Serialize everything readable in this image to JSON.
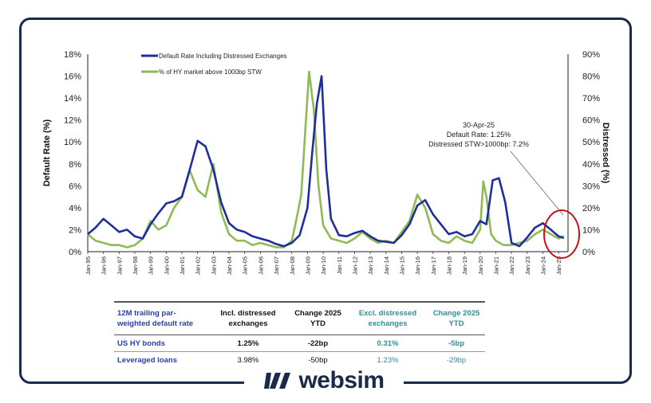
{
  "chart_data": {
    "type": "line",
    "title": "",
    "ylabel_left": "Default Rate (%)",
    "ylabel_right": "Distressed (%)",
    "ylim_left": [
      0,
      18
    ],
    "ylim_right": [
      0,
      90
    ],
    "yticks_left": [
      "0%",
      "2%",
      "4%",
      "6%",
      "8%",
      "10%",
      "12%",
      "14%",
      "16%",
      "18%"
    ],
    "yticks_right": [
      "0%",
      "10%",
      "20%",
      "30%",
      "40%",
      "50%",
      "60%",
      "70%",
      "80%",
      "90%"
    ],
    "xticks": [
      "Jan-95",
      "Jan-96",
      "Jan-97",
      "Jan-98",
      "Jan-99",
      "Jan-00",
      "Jan-01",
      "Jan-02",
      "Jan-03",
      "Jan-04",
      "Jan-05",
      "Jan-06",
      "Jan-07",
      "Jan-08",
      "Jan-09",
      "Jan-10",
      "Jan-11",
      "Jan-12",
      "Jan-13",
      "Jan-14",
      "Jan-15",
      "Jan-16",
      "Jan-17",
      "Jan-18",
      "Jan-19",
      "Jan-20",
      "Jan-21",
      "Jan-22",
      "Jan-23",
      "Jan-24",
      "Jan-25"
    ],
    "series": [
      {
        "name": "Default Rate Including Distressed Exchanges",
        "axis": "left",
        "color": "#1f2e9c",
        "x": [
          1995.0,
          1995.5,
          1996.0,
          1996.5,
          1997.0,
          1997.5,
          1998.0,
          1998.5,
          1999.0,
          1999.5,
          2000.0,
          2000.5,
          2001.0,
          2001.5,
          2002.0,
          2002.5,
          2003.0,
          2003.5,
          2004.0,
          2004.5,
          2005.0,
          2005.5,
          2006.0,
          2006.5,
          2007.0,
          2007.5,
          2008.0,
          2008.5,
          2009.0,
          2009.3,
          2009.6,
          2009.9,
          2010.2,
          2010.5,
          2011.0,
          2011.5,
          2012.0,
          2012.5,
          2013.0,
          2013.5,
          2014.0,
          2014.5,
          2015.0,
          2015.5,
          2016.0,
          2016.5,
          2017.0,
          2017.5,
          2018.0,
          2018.5,
          2019.0,
          2019.5,
          2020.0,
          2020.4,
          2020.8,
          2021.2,
          2021.6,
          2022.0,
          2022.5,
          2023.0,
          2023.5,
          2024.0,
          2024.5,
          2025.0,
          2025.33
        ],
        "values": [
          1.6,
          2.2,
          3.0,
          2.4,
          1.8,
          2.0,
          1.4,
          1.2,
          2.5,
          3.5,
          4.4,
          4.6,
          5.0,
          7.5,
          10.1,
          9.6,
          7.5,
          4.5,
          2.6,
          2.0,
          1.8,
          1.4,
          1.2,
          1.0,
          0.7,
          0.5,
          0.8,
          1.5,
          4.0,
          9.0,
          13.5,
          16.0,
          7.5,
          3.0,
          1.5,
          1.4,
          1.7,
          1.9,
          1.4,
          1.0,
          0.9,
          0.8,
          1.5,
          2.5,
          4.2,
          4.7,
          3.4,
          2.5,
          1.6,
          1.8,
          1.4,
          1.6,
          2.8,
          2.5,
          6.5,
          6.7,
          4.5,
          0.8,
          0.5,
          1.3,
          2.2,
          2.6,
          2.0,
          1.4,
          1.25
        ]
      },
      {
        "name": "% of HY market above 1000bp STW",
        "axis": "right",
        "color": "#8fba56",
        "x": [
          1995.0,
          1995.5,
          1996.0,
          1996.5,
          1997.0,
          1997.5,
          1998.0,
          1998.5,
          1999.0,
          1999.5,
          2000.0,
          2000.5,
          2001.0,
          2001.5,
          2002.0,
          2002.5,
          2003.0,
          2003.5,
          2004.0,
          2004.5,
          2005.0,
          2005.5,
          2006.0,
          2006.5,
          2007.0,
          2007.5,
          2008.0,
          2008.3,
          2008.6,
          2008.9,
          2009.1,
          2009.4,
          2009.7,
          2010.0,
          2010.5,
          2011.0,
          2011.5,
          2012.0,
          2012.5,
          2013.0,
          2013.5,
          2014.0,
          2014.5,
          2015.0,
          2015.5,
          2016.0,
          2016.5,
          2017.0,
          2017.5,
          2018.0,
          2018.5,
          2019.0,
          2019.5,
          2020.0,
          2020.2,
          2020.4,
          2020.7,
          2021.0,
          2021.5,
          2022.0,
          2022.5,
          2023.0,
          2023.5,
          2024.0,
          2024.5,
          2025.0,
          2025.33
        ],
        "values": [
          8,
          5,
          4,
          3,
          3,
          2,
          3,
          6,
          14,
          10,
          12,
          20,
          25,
          37,
          28,
          25,
          40,
          18,
          8,
          5,
          5,
          3,
          4,
          3,
          2,
          2,
          5,
          15,
          26,
          60,
          82,
          65,
          30,
          12,
          6,
          5,
          4,
          6,
          9,
          6,
          4,
          5,
          4,
          9,
          14,
          26,
          20,
          8,
          5,
          4,
          7,
          5,
          4,
          10,
          32,
          25,
          8,
          5,
          3,
          3,
          4,
          5,
          8,
          10,
          8,
          6,
          7.2
        ]
      }
    ],
    "legend_position": "top-left",
    "annotation": {
      "lines": [
        "30-Apr-25",
        "Default Rate: 1.25%",
        "Distressed STW>1000bp: 7.2%"
      ]
    }
  },
  "table": {
    "headers": [
      "12M trailing par-weighted default rate",
      "Incl. distressed exchanges",
      "Change 2025 YTD",
      "Excl. distressed exchanges",
      "Change 2025 YTD"
    ],
    "rows": [
      {
        "label": "US HY bonds",
        "incl": "1.25%",
        "incl_change": "-22bp",
        "excl": "0.31%",
        "excl_change": "-5bp"
      },
      {
        "label": "Leveraged loans",
        "incl": "3.98%",
        "incl_change": "-50bp",
        "excl": "1.23%",
        "excl_change": "-29bp"
      }
    ]
  },
  "branding": {
    "logo_text": "websim",
    "logo_color": "#1a2a4a"
  }
}
